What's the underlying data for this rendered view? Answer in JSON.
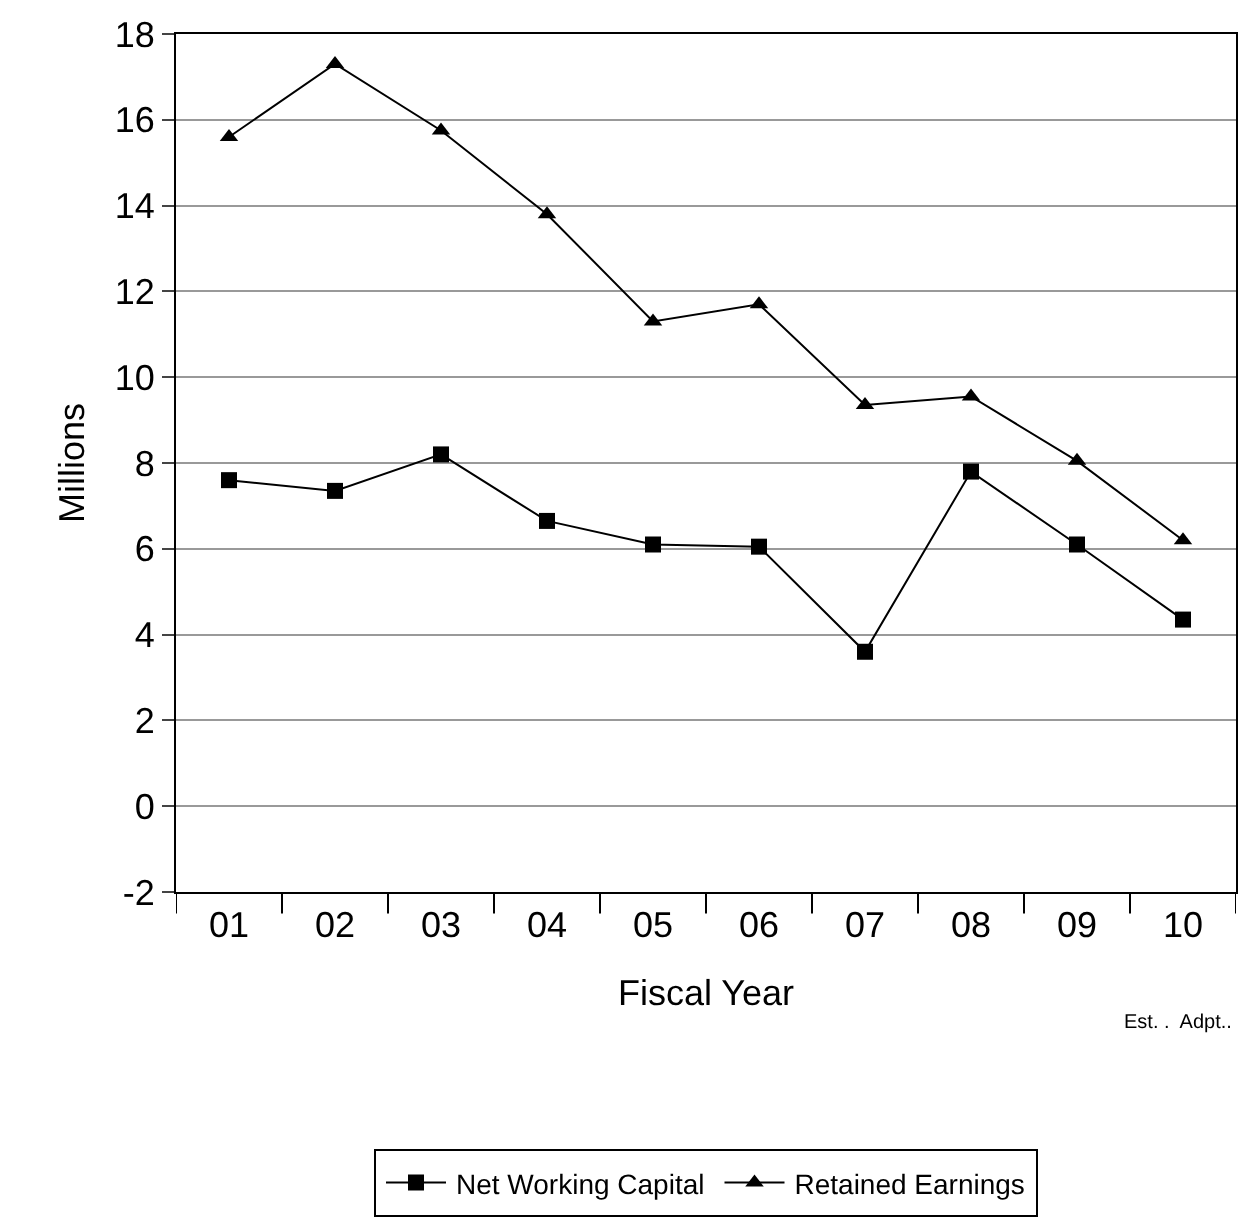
{
  "chart_data": {
    "type": "line",
    "xlabel": "Fiscal Year",
    "ylabel": "Millions",
    "categories": [
      "01",
      "02",
      "03",
      "04",
      "05",
      "06",
      "07",
      "08",
      "09",
      "10"
    ],
    "series": [
      {
        "name": "Net Working Capital",
        "color": "#000000",
        "marker": "square",
        "values": [
          7.6,
          7.35,
          8.2,
          6.65,
          6.1,
          6.05,
          3.6,
          7.8,
          6.1,
          4.35
        ]
      },
      {
        "name": "Retained Earnings",
        "color": "#000000",
        "marker": "triangle",
        "values": [
          15.6,
          17.3,
          15.75,
          13.8,
          11.3,
          11.7,
          9.35,
          9.55,
          8.05,
          6.2
        ]
      }
    ],
    "ylim": [
      -2,
      18
    ],
    "yticks": [
      -2,
      0,
      2,
      4,
      6,
      8,
      10,
      12,
      14,
      16,
      18
    ],
    "grid": "y",
    "legend": "bottom",
    "line_style": "solid",
    "annotations": [
      "Est. .  Adpt.."
    ]
  }
}
